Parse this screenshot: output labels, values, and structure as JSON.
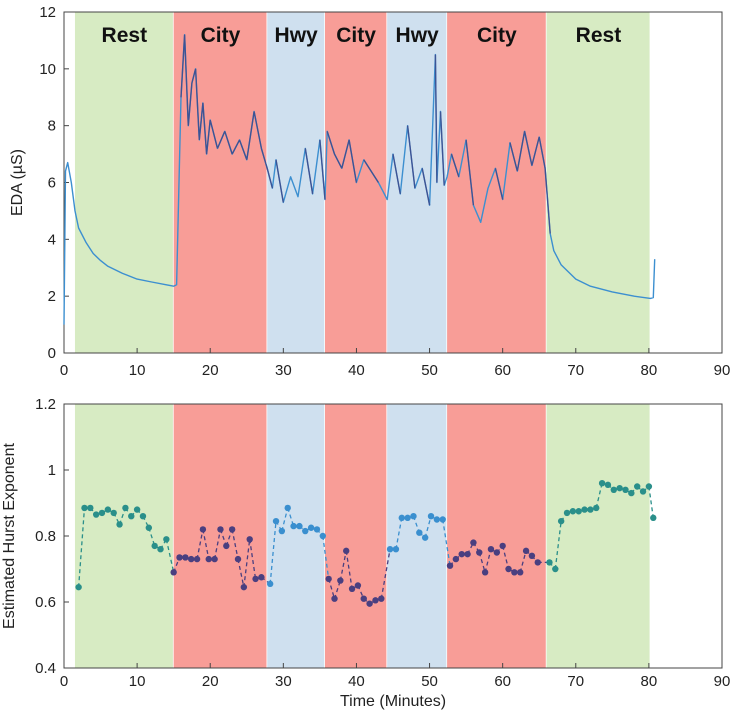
{
  "colors": {
    "rest": "#d7ebc3",
    "city": "#f89d97",
    "hwy": "#cfe0ef",
    "eda_line_low": "#3c8fd0",
    "eda_line_high": "#3e3f80",
    "hurst_rest": "#2a8f8a",
    "hurst_city": "#4a3f80",
    "hurst_hwy": "#3a8fcf"
  },
  "chart_data": [
    {
      "type": "line",
      "ylabel": "EDA (µS)",
      "xlabel": "",
      "xlim": [
        0,
        90
      ],
      "ylim": [
        0,
        12
      ],
      "xticks": [
        "0",
        "10",
        "20",
        "30",
        "40",
        "50",
        "60",
        "70",
        "80",
        "90"
      ],
      "yticks": [
        "0",
        "2",
        "4",
        "6",
        "8",
        "10",
        "12"
      ],
      "grid": false,
      "segments": [
        {
          "label": "Rest",
          "start": 1.5,
          "end": 15.0,
          "kind": "rest"
        },
        {
          "label": "City",
          "start": 15.0,
          "end": 27.8,
          "kind": "city"
        },
        {
          "label": "Hwy",
          "start": 27.8,
          "end": 35.7,
          "kind": "hwy"
        },
        {
          "label": "City",
          "start": 35.7,
          "end": 44.2,
          "kind": "city"
        },
        {
          "label": "Hwy",
          "start": 44.2,
          "end": 52.4,
          "kind": "hwy"
        },
        {
          "label": "City",
          "start": 52.4,
          "end": 66.0,
          "kind": "city"
        },
        {
          "label": "Rest",
          "start": 66.0,
          "end": 80.2,
          "kind": "rest"
        }
      ],
      "series": [
        {
          "x": [
            0,
            0.2,
            0.5,
            1.0,
            1.5,
            2,
            3,
            4,
            5,
            6,
            8,
            10,
            12,
            14,
            15.0,
            15.4,
            16,
            16.5,
            17,
            17.5,
            18,
            18.5,
            19,
            19.5,
            20,
            21,
            22,
            23,
            24,
            25,
            26,
            27,
            27.8,
            28.5,
            29,
            30,
            31,
            32,
            33,
            34,
            35,
            35.7,
            36,
            37,
            38,
            39,
            40,
            41,
            42,
            43,
            44.2,
            45,
            46,
            47,
            48,
            49,
            50,
            50.8,
            51,
            51.5,
            52,
            52.4,
            53,
            54,
            55,
            56,
            57,
            58,
            59,
            60,
            61,
            62,
            63,
            64,
            65,
            65.8,
            66.5,
            67,
            68,
            70,
            72,
            75,
            78,
            80.2,
            80.6,
            80.8
          ],
          "y": [
            1.0,
            6.4,
            6.7,
            6.0,
            5.0,
            4.4,
            3.9,
            3.5,
            3.25,
            3.05,
            2.8,
            2.6,
            2.5,
            2.4,
            2.35,
            2.4,
            9.0,
            11.2,
            8.0,
            9.5,
            10.0,
            7.5,
            8.8,
            7.0,
            8.2,
            7.2,
            7.8,
            7.0,
            7.5,
            6.8,
            8.5,
            7.2,
            6.5,
            5.8,
            6.8,
            5.3,
            6.2,
            5.5,
            7.2,
            5.6,
            7.5,
            5.4,
            7.8,
            7.0,
            6.5,
            7.5,
            6.0,
            6.8,
            6.4,
            6.0,
            5.4,
            7.0,
            5.6,
            8.0,
            5.8,
            6.5,
            5.2,
            10.5,
            6.0,
            8.5,
            5.9,
            6.2,
            7.0,
            6.2,
            7.5,
            5.2,
            4.6,
            5.8,
            6.5,
            5.4,
            7.4,
            6.4,
            7.8,
            6.6,
            7.6,
            6.5,
            4.2,
            3.6,
            3.1,
            2.6,
            2.35,
            2.15,
            2.0,
            1.92,
            1.95,
            3.3
          ]
        }
      ],
      "annotations": [
        "Rest",
        "City",
        "Hwy",
        "City",
        "Hwy",
        "City",
        "Rest"
      ]
    },
    {
      "type": "line",
      "ylabel": "Estimated Hurst Exponent",
      "xlabel": "Time (Minutes)",
      "xlim": [
        0,
        90
      ],
      "ylim": [
        0.4,
        1.2
      ],
      "xticks": [
        "0",
        "10",
        "20",
        "30",
        "40",
        "50",
        "60",
        "70",
        "80",
        "90"
      ],
      "yticks": [
        "0.4",
        "0.6",
        "0.8",
        "1",
        "1.2"
      ],
      "grid": false,
      "series": [
        {
          "style": "dashed-with-markers",
          "x": [
            2,
            2.8,
            3.6,
            4.4,
            5.2,
            6,
            6.8,
            7.6,
            8.4,
            9.2,
            10,
            10.8,
            11.6,
            12.4,
            13.2,
            14,
            15,
            15.8,
            16.6,
            17.4,
            18.2,
            19,
            19.8,
            20.6,
            21.4,
            22.2,
            23,
            23.8,
            24.6,
            25.4,
            26.2,
            27,
            28.2,
            29,
            29.8,
            30.6,
            31.4,
            32.2,
            33,
            33.8,
            34.6,
            35.4,
            36.2,
            37,
            37.8,
            38.6,
            39.4,
            40.2,
            41,
            41.8,
            42.6,
            43.4,
            44.6,
            45.4,
            46.2,
            47,
            47.8,
            48.6,
            49.4,
            50.2,
            51,
            51.8,
            52.8,
            53.6,
            54.4,
            55.2,
            56,
            56.8,
            57.6,
            58.4,
            59.2,
            60,
            60.8,
            61.6,
            62.4,
            63.2,
            64,
            64.8,
            66.4,
            67.2,
            68,
            68.8,
            69.6,
            70.4,
            71.2,
            72,
            72.8,
            73.6,
            74.4,
            75.2,
            76,
            76.8,
            77.6,
            78.4,
            79.2,
            80,
            80.6
          ],
          "y": [
            0.645,
            0.885,
            0.885,
            0.865,
            0.87,
            0.88,
            0.87,
            0.835,
            0.885,
            0.86,
            0.88,
            0.86,
            0.825,
            0.77,
            0.76,
            0.79,
            0.69,
            0.735,
            0.735,
            0.73,
            0.73,
            0.82,
            0.73,
            0.73,
            0.82,
            0.77,
            0.82,
            0.73,
            0.645,
            0.79,
            0.67,
            0.675,
            0.655,
            0.845,
            0.815,
            0.885,
            0.83,
            0.83,
            0.815,
            0.825,
            0.82,
            0.8,
            0.67,
            0.61,
            0.665,
            0.755,
            0.64,
            0.65,
            0.61,
            0.595,
            0.605,
            0.61,
            0.76,
            0.76,
            0.855,
            0.855,
            0.86,
            0.81,
            0.795,
            0.86,
            0.85,
            0.85,
            0.71,
            0.73,
            0.745,
            0.745,
            0.78,
            0.75,
            0.69,
            0.76,
            0.75,
            0.77,
            0.7,
            0.69,
            0.69,
            0.755,
            0.74,
            0.72,
            0.72,
            0.7,
            0.845,
            0.87,
            0.875,
            0.875,
            0.88,
            0.88,
            0.885,
            0.96,
            0.955,
            0.94,
            0.945,
            0.94,
            0.93,
            0.95,
            0.935,
            0.95,
            0.855
          ]
        }
      ]
    }
  ]
}
